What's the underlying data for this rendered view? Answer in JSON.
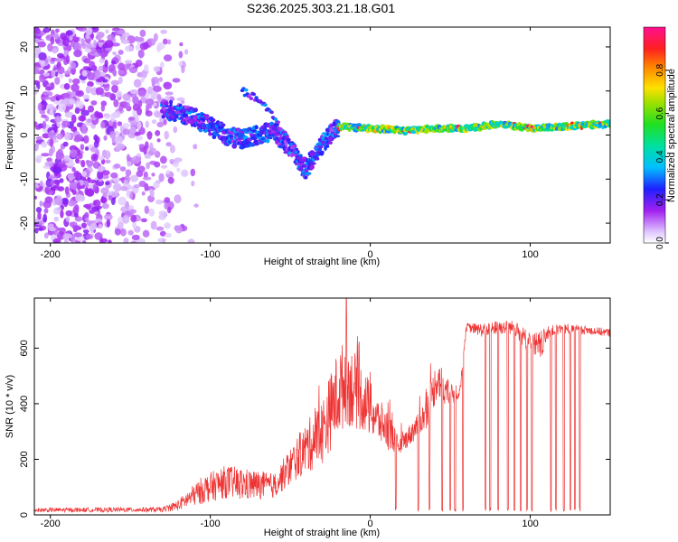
{
  "title": "S236.2025.303.21.18.G01",
  "chart_data": [
    {
      "type": "heatmap",
      "name": "spectrogram",
      "xlabel": "Height of straight line (km)",
      "ylabel": "Frequency (Hz)",
      "xlim": [
        -210,
        150
      ],
      "ylim": [
        -24.5,
        24.5
      ],
      "xticks": [
        -200,
        -100,
        0,
        100
      ],
      "xtick_labels": [
        "-200",
        "-100",
        "0",
        "100"
      ],
      "yticks": [
        -20,
        -10,
        0,
        10,
        20
      ],
      "ytick_labels": [
        "-20",
        "-10",
        "0",
        "10",
        "20"
      ],
      "colorbar": {
        "label": "Normalized spectral amplitude",
        "range": [
          0.0,
          1.0
        ],
        "ticks": [
          0.0,
          0.2,
          0.4,
          0.6,
          0.8
        ],
        "tick_labels": [
          "0.0",
          "0.2",
          "0.4",
          "0.6",
          "0.8"
        ]
      },
      "ridge": {
        "description_points_x": [
          -130,
          -120,
          -110,
          -100,
          -90,
          -80,
          -70,
          -60,
          -50,
          -40,
          -30,
          -20,
          0,
          20,
          40,
          60,
          80,
          100,
          120,
          150
        ],
        "description_points_freq": [
          6,
          5,
          4,
          2,
          0,
          -1,
          0,
          1,
          -3,
          -8,
          -2,
          2,
          1.5,
          1,
          1.5,
          1.5,
          2.5,
          1.5,
          2,
          2.5
        ]
      },
      "secondary_branch": {
        "x": [
          -80,
          -70,
          -60,
          -50,
          -40
        ],
        "freq": [
          10,
          8,
          4,
          -2,
          -8
        ]
      }
    },
    {
      "type": "line",
      "name": "snr",
      "xlabel": "Height of straight line (km)",
      "ylabel": "SNR (10 * v/v)",
      "xlim": [
        -210,
        150
      ],
      "ylim": [
        0,
        780
      ],
      "xticks": [
        -200,
        -100,
        0,
        100
      ],
      "xtick_labels": [
        "-200",
        "-100",
        "0",
        "100"
      ],
      "yticks": [
        0,
        200,
        400,
        600
      ],
      "ytick_labels": [
        "0",
        "200",
        "400",
        "600"
      ],
      "color": "#ee3333",
      "envelope": {
        "x": [
          -210,
          -130,
          -120,
          -105,
          -90,
          -80,
          -60,
          -45,
          -30,
          -20,
          -15,
          -5,
          5,
          12,
          18,
          25,
          35,
          42,
          50,
          56,
          60,
          70,
          80,
          90,
          100,
          105,
          112,
          120,
          135,
          150
        ],
        "low": [
          10,
          10,
          15,
          40,
          60,
          50,
          60,
          130,
          180,
          280,
          320,
          300,
          260,
          230,
          220,
          250,
          310,
          420,
          380,
          420,
          660,
          640,
          650,
          650,
          570,
          530,
          640,
          650,
          650,
          640
        ],
        "high": [
          25,
          28,
          55,
          140,
          180,
          170,
          150,
          290,
          420,
          600,
          640,
          540,
          420,
          370,
          270,
          330,
          420,
          570,
          470,
          480,
          690,
          690,
          700,
          700,
          660,
          660,
          680,
          690,
          680,
          670
        ]
      },
      "spike_max": {
        "x": -15,
        "y": 780
      },
      "dropouts_x": [
        16,
        30,
        37,
        45,
        50,
        53,
        58,
        72,
        75,
        80,
        86,
        90,
        94,
        98,
        101,
        113,
        116,
        121,
        125,
        128,
        131
      ]
    }
  ]
}
